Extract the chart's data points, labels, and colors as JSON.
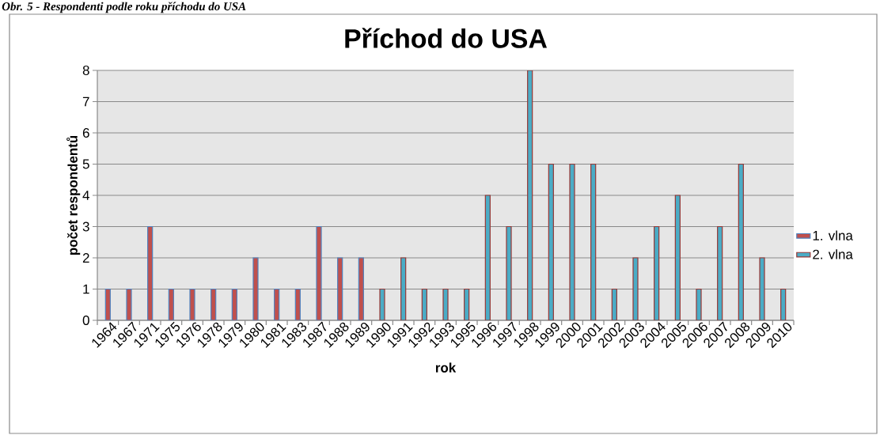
{
  "chart_data": {
    "type": "bar",
    "title": "Příchod do USA",
    "xlabel": "rok",
    "ylabel": "počet respondentů",
    "annotations": [
      "Obr. 5 - Respondenti podle roku příchodu do USA"
    ],
    "categories": [
      "1964",
      "1967",
      "1971",
      "1975",
      "1976",
      "1978",
      "1979",
      "1980",
      "1981",
      "1983",
      "1987",
      "1988",
      "1989",
      "1990",
      "1991",
      "1992",
      "1993",
      "1995",
      "1996",
      "1997",
      "1998",
      "1999",
      "2000",
      "2001",
      "2002",
      "2003",
      "2004",
      "2005",
      "2006",
      "2007",
      "2008",
      "2009",
      "2010"
    ],
    "series": [
      {
        "name": "1. vlna",
        "color": "#c0504d",
        "values": [
          1,
          1,
          3,
          1,
          1,
          1,
          1,
          2,
          1,
          1,
          3,
          2,
          2,
          null,
          null,
          null,
          null,
          null,
          null,
          null,
          null,
          null,
          null,
          null,
          null,
          null,
          null,
          null,
          null,
          null,
          null,
          null,
          null
        ]
      },
      {
        "name": "2. vlna",
        "color": "#4bacc6",
        "values": [
          null,
          null,
          null,
          null,
          null,
          null,
          null,
          null,
          null,
          null,
          null,
          null,
          null,
          1,
          2,
          1,
          1,
          1,
          4,
          3,
          8,
          5,
          5,
          5,
          1,
          2,
          3,
          4,
          1,
          3,
          5,
          2,
          1
        ]
      }
    ],
    "ylim": [
      0,
      8
    ],
    "yticks": [
      0,
      1,
      2,
      3,
      4,
      5,
      6,
      7,
      8
    ],
    "grid": "y",
    "legend": "right"
  }
}
